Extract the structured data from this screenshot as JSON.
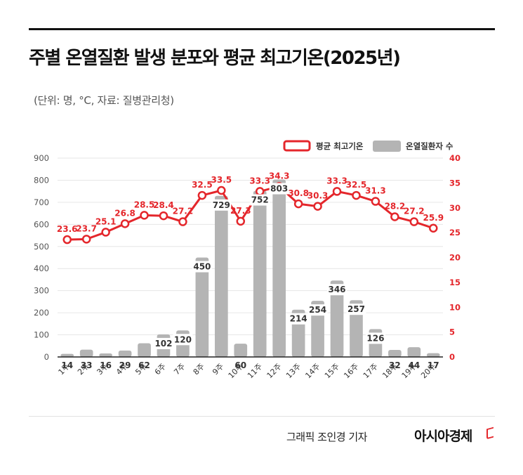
{
  "header": {
    "title": "주별 온열질환 발생 분포와 평균 최고기온(2025년)",
    "subtitle": "(단위: 명, °C, 자료: 질병관리청)"
  },
  "footer": {
    "credit": "그래픽  조인경 기자",
    "brand": "아시아경제"
  },
  "colors": {
    "bar": "#b4b4b4",
    "line": "#e4262b",
    "right_axis": "#e4262b",
    "left_axis": "#555555"
  },
  "chart_data": {
    "type": "bar",
    "categories": [
      "1주",
      "2주",
      "3주",
      "4주",
      "5주",
      "6주",
      "7주",
      "8주",
      "9주",
      "10주",
      "11주",
      "12주",
      "13주",
      "14주",
      "15주",
      "16주",
      "17주",
      "18주",
      "19주",
      "20주"
    ],
    "series": [
      {
        "name": "온열질환자 수",
        "type": "bar",
        "axis": "left",
        "values": [
          14,
          33,
          16,
          29,
          62,
          102,
          120,
          450,
          729,
          60,
          752,
          803,
          214,
          254,
          346,
          257,
          126,
          32,
          44,
          17
        ]
      },
      {
        "name": "평균 최고기온",
        "type": "line",
        "axis": "right",
        "values": [
          23.6,
          23.7,
          25.1,
          26.8,
          28.5,
          28.4,
          27.2,
          32.5,
          33.5,
          27.3,
          33.3,
          34.3,
          30.8,
          30.3,
          33.3,
          32.5,
          31.3,
          28.2,
          27.2,
          25.9
        ]
      }
    ],
    "ylim_left": [
      0,
      900
    ],
    "yticks_left": [
      "0",
      "100",
      "200",
      "300",
      "400",
      "500",
      "600",
      "700",
      "800",
      "900"
    ],
    "ylim_right": [
      0,
      40
    ],
    "yticks_right": [
      "0",
      "5",
      "10",
      "15",
      "20",
      "25",
      "30",
      "35",
      "40"
    ],
    "legend_position": "top-right",
    "grid": true
  }
}
